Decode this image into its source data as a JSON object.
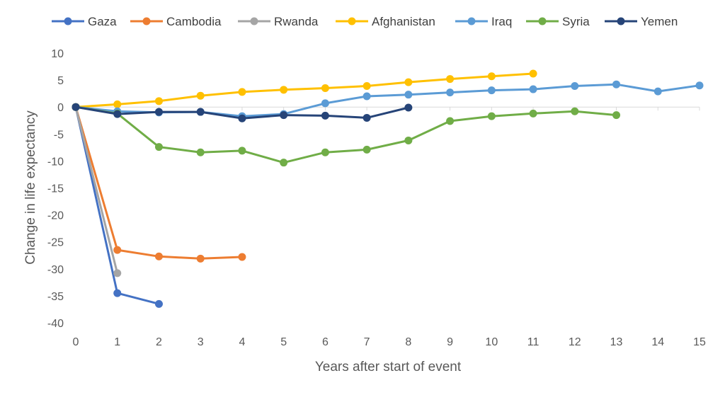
{
  "chart_data": {
    "type": "line",
    "title": "",
    "xlabel": "Years after start of event",
    "ylabel": "Change in life expectancy",
    "xlim": [
      0,
      15
    ],
    "ylim": [
      -40,
      10
    ],
    "xticks": [
      0,
      1,
      2,
      3,
      4,
      5,
      6,
      7,
      8,
      9,
      10,
      11,
      12,
      13,
      14,
      15
    ],
    "yticks": [
      10,
      5,
      0,
      -5,
      -10,
      -15,
      -20,
      -25,
      -30,
      -35,
      -40
    ],
    "legend_position": "top",
    "series": [
      {
        "name": "Gaza",
        "color": "#4472C4",
        "x": [
          0,
          1,
          2
        ],
        "y": [
          0,
          -34.5,
          -36.5
        ]
      },
      {
        "name": "Cambodia",
        "color": "#ED7D31",
        "x": [
          0,
          1,
          2,
          3,
          4
        ],
        "y": [
          0,
          -26.5,
          -27.7,
          -28.1,
          -27.8
        ]
      },
      {
        "name": "Rwanda",
        "color": "#A5A5A5",
        "x": [
          0,
          1
        ],
        "y": [
          0,
          -30.8
        ]
      },
      {
        "name": "Afghanistan",
        "color": "#FFC000",
        "x": [
          0,
          1,
          2,
          3,
          4,
          5,
          6,
          7,
          8,
          9,
          10,
          11
        ],
        "y": [
          0,
          0.5,
          1.1,
          2.1,
          2.8,
          3.2,
          3.5,
          3.9,
          4.6,
          5.2,
          5.7,
          6.2
        ]
      },
      {
        "name": "Iraq",
        "color": "#5B9BD5",
        "x": [
          0,
          1,
          2,
          3,
          4,
          5,
          6,
          7,
          8,
          9,
          10,
          11,
          12,
          13,
          14,
          15
        ],
        "y": [
          0,
          -0.8,
          -1.0,
          -0.9,
          -1.7,
          -1.3,
          0.7,
          2.0,
          2.3,
          2.7,
          3.1,
          3.3,
          3.9,
          4.2,
          2.9,
          4.0
        ]
      },
      {
        "name": "Syria",
        "color": "#70AD47",
        "x": [
          0,
          1,
          2,
          3,
          4,
          5,
          6,
          7,
          8,
          9,
          10,
          11,
          12,
          13
        ],
        "y": [
          0,
          -1.2,
          -7.4,
          -8.4,
          -8.1,
          -10.3,
          -8.4,
          -7.9,
          -6.2,
          -2.6,
          -1.7,
          -1.2,
          -0.8,
          -1.5
        ]
      },
      {
        "name": "Yemen",
        "color": "#264478",
        "x": [
          0,
          1,
          2,
          3,
          4,
          5,
          6,
          7,
          8
        ],
        "y": [
          0,
          -1.3,
          -0.9,
          -0.9,
          -2.1,
          -1.5,
          -1.6,
          -2.0,
          -0.1
        ]
      }
    ]
  }
}
